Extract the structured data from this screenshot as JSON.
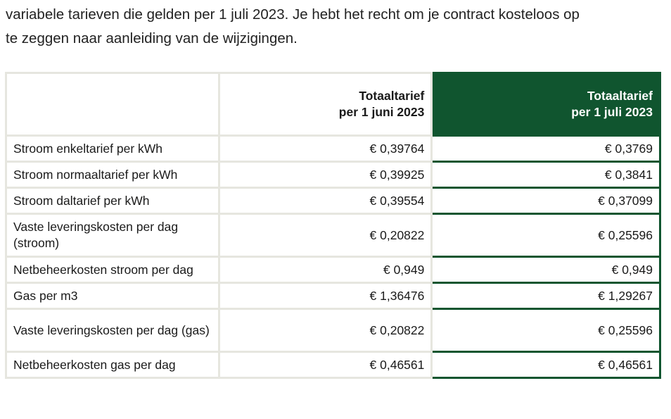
{
  "intro": {
    "line1": "variabele tarieven die gelden per 1 juli 2023. Je hebt het recht om je contract kosteloos op",
    "line2": "te zeggen naar aanleiding van de wijzigingen."
  },
  "table": {
    "header": {
      "label": "",
      "old": [
        "Totaaltarief",
        "per 1 juni 2023"
      ],
      "new": [
        "Totaaltarief",
        "per 1 juli 2023"
      ]
    },
    "rows": [
      {
        "label": "Stroom enkeltarief per kWh",
        "old": "€ 0,39764",
        "new": "€ 0,3769"
      },
      {
        "label": "Stroom normaaltarief per kWh",
        "old": "€ 0,39925",
        "new": "€ 0,3841"
      },
      {
        "label": "Stroom daltarief per kWh",
        "old": "€ 0,39554",
        "new": "€ 0,37099"
      },
      {
        "label": "Vaste leveringskosten per dag (stroom)",
        "old": "€ 0,20822",
        "new": "€ 0,25596"
      },
      {
        "label": "Netbeheerkosten stroom per dag",
        "old": "€ 0,949",
        "new": "€ 0,949"
      },
      {
        "label": "Gas per m3",
        "old": "€ 1,36476",
        "new": "€ 1,29267"
      },
      {
        "label": "Vaste leveringskosten per dag (gas)",
        "old": "€ 0,20822",
        "new": "€ 0,25596"
      },
      {
        "label": "Netbeheerkosten gas per dag",
        "old": "€ 0,46561",
        "new": "€ 0,46561"
      }
    ]
  },
  "colors": {
    "highlight": "#10552f",
    "border": "#e6e6df"
  }
}
